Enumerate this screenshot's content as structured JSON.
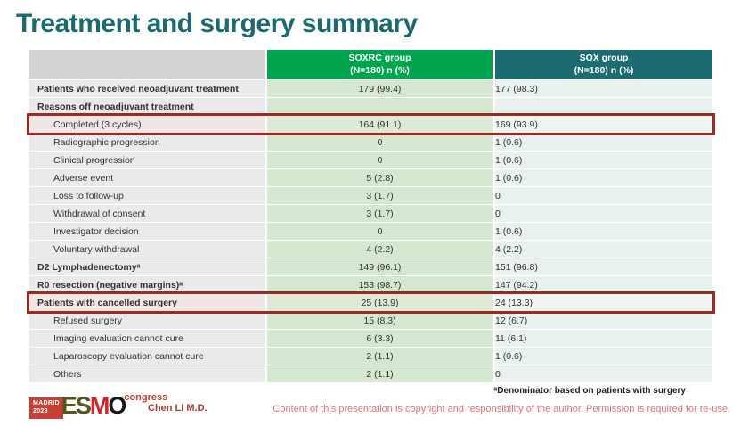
{
  "title": "Treatment and surgery summary",
  "table": {
    "columns": [
      {
        "label": ""
      },
      {
        "label": "SOXRC group",
        "sublabel": "(N=180)  n (%)"
      },
      {
        "label": "SOX group",
        "sublabel": "(N=180)  n (%)"
      }
    ],
    "rows": [
      {
        "label": "Patients who received neoadjuvant treatment",
        "bold": true,
        "indent": false,
        "highlight": false,
        "soxrc": "179 (99.4)",
        "sox": "177 (98.3)"
      },
      {
        "label": "Reasons off neoadjuvant treatment",
        "bold": true,
        "indent": false,
        "highlight": false,
        "soxrc": "",
        "sox": ""
      },
      {
        "label": "Completed (3 cycles)",
        "bold": false,
        "indent": true,
        "highlight": true,
        "soxrc": "164 (91.1)",
        "sox": "169 (93.9)"
      },
      {
        "label": "Radiographic progression",
        "bold": false,
        "indent": true,
        "highlight": false,
        "soxrc": "0",
        "sox": "1 (0.6)"
      },
      {
        "label": "Clinical progression",
        "bold": false,
        "indent": true,
        "highlight": false,
        "soxrc": "0",
        "sox": "1 (0.6)"
      },
      {
        "label": "Adverse event",
        "bold": false,
        "indent": true,
        "highlight": false,
        "soxrc": "5 (2.8)",
        "sox": "1 (0.6)"
      },
      {
        "label": "Loss to follow-up",
        "bold": false,
        "indent": true,
        "highlight": false,
        "soxrc": "3 (1.7)",
        "sox": "0"
      },
      {
        "label": "Withdrawal of consent",
        "bold": false,
        "indent": true,
        "highlight": false,
        "soxrc": "3 (1.7)",
        "sox": "0"
      },
      {
        "label": "Investigator decision",
        "bold": false,
        "indent": true,
        "highlight": false,
        "soxrc": "0",
        "sox": "1 (0.6)"
      },
      {
        "label": "Voluntary withdrawal",
        "bold": false,
        "indent": true,
        "highlight": false,
        "soxrc": "4 (2.2)",
        "sox": "4 (2.2)"
      },
      {
        "label": "D2 Lymphadenectomyᵃ",
        "bold": true,
        "indent": false,
        "highlight": false,
        "soxrc": "149 (96.1)",
        "sox": "151 (96.8)"
      },
      {
        "label": "R0 resection (negative margins)ᵃ",
        "bold": true,
        "indent": false,
        "highlight": false,
        "soxrc": "153 (98.7)",
        "sox": "147 (94.2)"
      },
      {
        "label": "Patients with cancelled surgery",
        "bold": true,
        "indent": false,
        "highlight": true,
        "soxrc": "25 (13.9)",
        "sox": "24 (13.3)"
      },
      {
        "label": "Refused surgery",
        "bold": false,
        "indent": true,
        "highlight": false,
        "soxrc": "15 (8.3)",
        "sox": "12 (6.7)"
      },
      {
        "label": "Imaging evaluation cannot cure",
        "bold": false,
        "indent": true,
        "highlight": false,
        "soxrc": "6 (3.3)",
        "sox": "11 (6.1)"
      },
      {
        "label": "Laparoscopy evaluation cannot cure",
        "bold": false,
        "indent": true,
        "highlight": false,
        "soxrc": "2 (1.1)",
        "sox": "1 (0.6)"
      },
      {
        "label": "Others",
        "bold": false,
        "indent": true,
        "highlight": false,
        "soxrc": "2 (1.1)",
        "sox": "0"
      }
    ]
  },
  "footer": {
    "footnote": "ᵃDenominator based on patients with surgery",
    "author": "Chen LI M.D.",
    "copyright": "Content of this presentation is copyright and responsibility of the author. Permission is required for re-use.",
    "logo": {
      "badge_line1": "MADRID",
      "badge_line2": "2023",
      "letters": [
        "E",
        "S",
        "M",
        "O"
      ],
      "suffix": "congress"
    }
  },
  "colors": {
    "title": "#1a6a70",
    "soxrc_header": "#00a44f",
    "sox_header": "#1b6b70",
    "highlight_border": "#9c2a24",
    "label_cell": "#eaeaea",
    "soxrc_cell": "#d6e7d1",
    "sox_cell": "#e9f1ed"
  }
}
